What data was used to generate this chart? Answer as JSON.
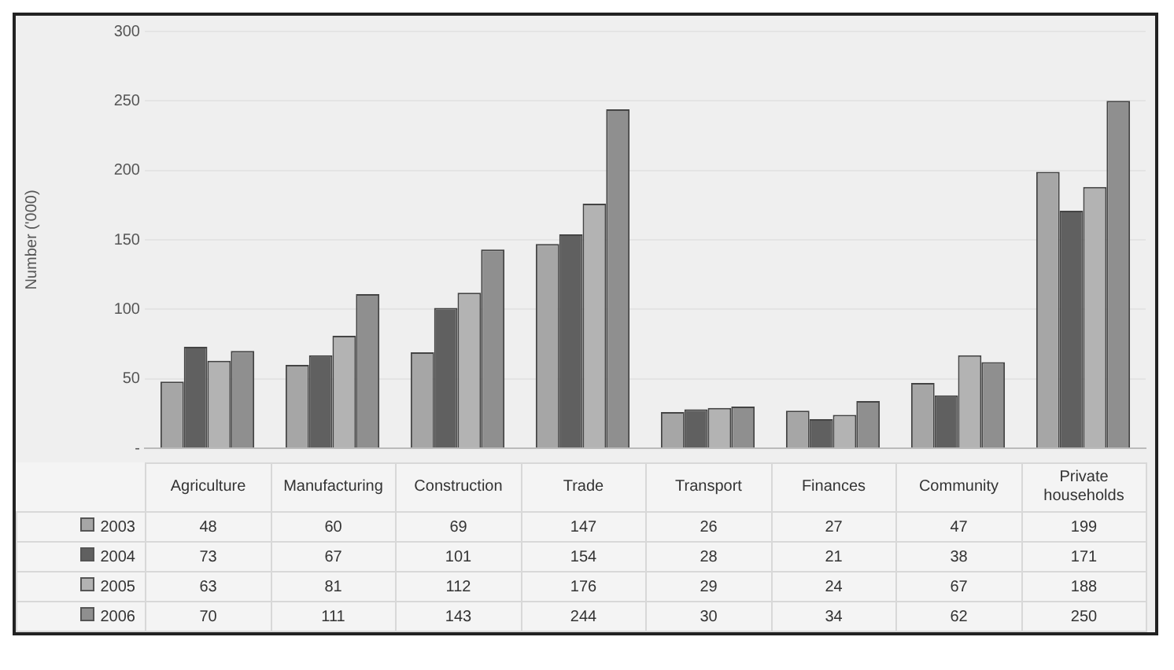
{
  "chart_data": {
    "type": "bar",
    "ylabel": "Number ('000)",
    "categories": [
      "Agriculture",
      "Manufacturing",
      "Construction",
      "Trade",
      "Transport",
      "Finances",
      "Community",
      "Private households"
    ],
    "series": [
      {
        "name": "2003",
        "color": "#a6a6a6",
        "values": [
          48,
          60,
          69,
          147,
          26,
          27,
          47,
          199
        ]
      },
      {
        "name": "2004",
        "color": "#606060",
        "values": [
          73,
          67,
          101,
          154,
          28,
          21,
          38,
          171
        ]
      },
      {
        "name": "2005",
        "color": "#b3b3b3",
        "values": [
          63,
          81,
          112,
          176,
          29,
          24,
          67,
          188
        ]
      },
      {
        "name": "2006",
        "color": "#8f8f8f",
        "values": [
          70,
          111,
          143,
          244,
          30,
          34,
          62,
          250
        ]
      }
    ],
    "ylim": [
      0,
      300
    ],
    "yticks": [
      {
        "value": 0,
        "label": "-"
      },
      50,
      100,
      150,
      200,
      250,
      300
    ],
    "grid": "y",
    "legend": "bottom",
    "data_labels": true
  }
}
